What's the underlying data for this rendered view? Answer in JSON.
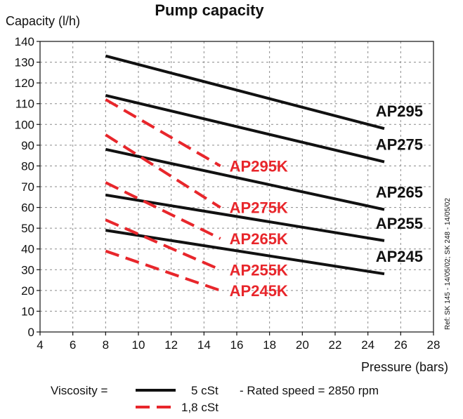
{
  "chart_data": {
    "type": "line",
    "title": "Pump  capacity",
    "ylabel": "Capacity   (l/h)",
    "xlabel": "Pressure   (bars)",
    "xlim": [
      4,
      28
    ],
    "ylim": [
      0,
      140
    ],
    "xticks": [
      4,
      6,
      8,
      10,
      12,
      14,
      16,
      18,
      20,
      22,
      24,
      26,
      28
    ],
    "yticks": [
      0,
      10,
      20,
      30,
      40,
      50,
      60,
      70,
      80,
      90,
      100,
      110,
      120,
      130,
      140
    ],
    "grid": true,
    "series": [
      {
        "name": "AP295",
        "style": "solid",
        "x": [
          8,
          25
        ],
        "y": [
          133,
          98
        ]
      },
      {
        "name": "AP275",
        "style": "solid",
        "x": [
          8,
          25
        ],
        "y": [
          114,
          82
        ]
      },
      {
        "name": "AP265",
        "style": "solid",
        "x": [
          8,
          25
        ],
        "y": [
          88,
          59
        ]
      },
      {
        "name": "AP255",
        "style": "solid",
        "x": [
          8,
          25
        ],
        "y": [
          66,
          44
        ]
      },
      {
        "name": "AP245",
        "style": "solid",
        "x": [
          8,
          25
        ],
        "y": [
          49,
          28
        ]
      },
      {
        "name": "AP295K",
        "style": "dashed",
        "x": [
          8,
          15
        ],
        "y": [
          112,
          80
        ]
      },
      {
        "name": "AP275K",
        "style": "dashed",
        "x": [
          8,
          15
        ],
        "y": [
          95,
          60
        ]
      },
      {
        "name": "AP265K",
        "style": "dashed",
        "x": [
          8,
          15
        ],
        "y": [
          72,
          45
        ]
      },
      {
        "name": "AP255K",
        "style": "dashed",
        "x": [
          8,
          15
        ],
        "y": [
          54,
          30
        ]
      },
      {
        "name": "AP245K",
        "style": "dashed",
        "x": [
          8,
          15
        ],
        "y": [
          39,
          20
        ]
      }
    ],
    "annotation": "Ref: SK 145 - 14/05/02; SK 248 - 14/05/02",
    "legend": {
      "viscosity_label": "Viscosity  =",
      "solid_value": "5 cSt",
      "dashed_value": "1,8 cSt",
      "rated_speed": "- Rated speed = 2850 rpm"
    },
    "colors": {
      "solid": "#111111",
      "dashed": "#e8262b",
      "grid": "#8a8a8a"
    }
  }
}
